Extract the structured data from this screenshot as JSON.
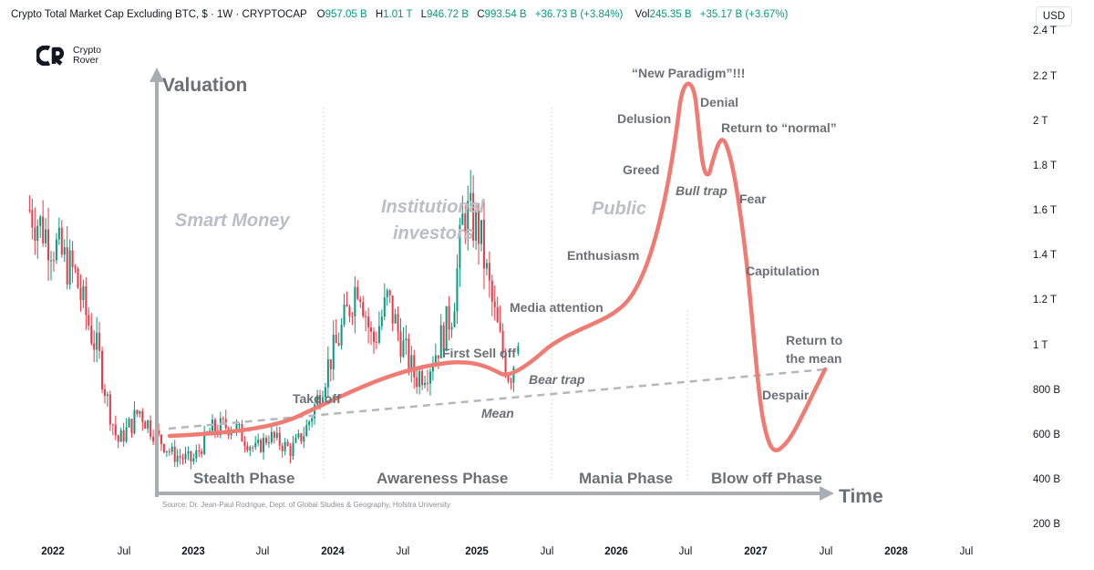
{
  "header": {
    "title": "Crypto Total Market Cap Excluding BTC, $ · 1W · CRYPTOCAP",
    "o_label": "O",
    "o_value": "957.05 B",
    "h_label": "H",
    "h_value": "1.01 T",
    "l_label": "L",
    "l_value": "946.72 B",
    "c_label": "C",
    "c_value": "993.54 B",
    "change": "+36.73 B (+3.84%)",
    "vol_label": "Vol",
    "vol_value": "245.35 B",
    "vol_change": "+35.17 B (+3.67%)"
  },
  "currency_button": "USD",
  "logo": {
    "line1": "Crypto",
    "line2": "Rover"
  },
  "colors": {
    "up": "#089981",
    "down": "#f23645",
    "curve": "#ef7b73",
    "annotation": "#6b6f76"
  },
  "chart_data": {
    "type": "candlestick",
    "y_scale": "log",
    "y_ticks": [
      "200 B",
      "400 B",
      "600 B",
      "800 B",
      "1 T",
      "1.2 T",
      "1.4 T",
      "1.6 T",
      "1.8 T",
      "2 T",
      "2.2 T",
      "2.4 T"
    ],
    "x_ticks": [
      {
        "label": "2022",
        "bold": true
      },
      {
        "label": "Jul",
        "bold": false
      },
      {
        "label": "2023",
        "bold": true
      },
      {
        "label": "Jul",
        "bold": false
      },
      {
        "label": "2024",
        "bold": true
      },
      {
        "label": "Jul",
        "bold": false
      },
      {
        "label": "2025",
        "bold": true
      },
      {
        "label": "Jul",
        "bold": false
      },
      {
        "label": "2026",
        "bold": true
      },
      {
        "label": "Jul",
        "bold": false
      },
      {
        "label": "2027",
        "bold": true
      },
      {
        "label": "Jul",
        "bold": false
      },
      {
        "label": "2028",
        "bold": true
      },
      {
        "label": "Jul",
        "bold": false
      }
    ],
    "series_keypoints": [
      [
        "2021-11-01",
        1600
      ],
      [
        "2022-01-01",
        1450
      ],
      [
        "2022-03-01",
        1300
      ],
      [
        "2022-05-01",
        950
      ],
      [
        "2022-06-20",
        560
      ],
      [
        "2022-08-15",
        700
      ],
      [
        "2022-11-10",
        500
      ],
      [
        "2023-01-01",
        470
      ],
      [
        "2023-02-15",
        610
      ],
      [
        "2023-04-15",
        640
      ],
      [
        "2023-06-15",
        520
      ],
      [
        "2023-07-20",
        590
      ],
      [
        "2023-09-15",
        520
      ],
      [
        "2023-10-25",
        620
      ],
      [
        "2023-12-20",
        900
      ],
      [
        "2024-03-10",
        1300
      ],
      [
        "2024-04-15",
        1000
      ],
      [
        "2024-05-25",
        1200
      ],
      [
        "2024-08-05",
        850
      ],
      [
        "2024-09-10",
        900
      ],
      [
        "2024-11-10",
        1150
      ],
      [
        "2024-12-10",
        1600
      ],
      [
        "2025-01-20",
        1500
      ],
      [
        "2025-02-25",
        1150
      ],
      [
        "2025-04-08",
        850
      ],
      [
        "2025-05-01",
        993.54
      ]
    ],
    "last_bar": {
      "open": "957.05 B",
      "high": "1.01 T",
      "low": "946.72 B",
      "close": "993.54 B"
    }
  },
  "overlay": {
    "y_axis_title": "Valuation",
    "x_axis_title": "Time",
    "source": "Source: Dr. Jean-Paul Rodrigue, Dept. of Global Studies & Geography, Hofstra University",
    "phases": [
      "Stealth Phase",
      "Awareness Phase",
      "Mania Phase",
      "Blow off Phase"
    ],
    "participants": [
      "Smart Money",
      "Institutional",
      "investors",
      "Public"
    ],
    "labels": {
      "take_off": "Take off",
      "first_sell_off": "First Sell off",
      "bear_trap": "Bear trap",
      "mean": "Mean",
      "media_attention": "Media attention",
      "enthusiasm": "Enthusiasm",
      "greed": "Greed",
      "delusion": "Delusion",
      "new_paradigm": "“New Paradigm”!!!",
      "denial": "Denial",
      "bull_trap": "Bull trap",
      "return_normal": "Return to “normal”",
      "fear": "Fear",
      "capitulation": "Capitulation",
      "return_mean_1": "Return to",
      "return_mean_2": "the mean",
      "despair": "Despair"
    }
  }
}
